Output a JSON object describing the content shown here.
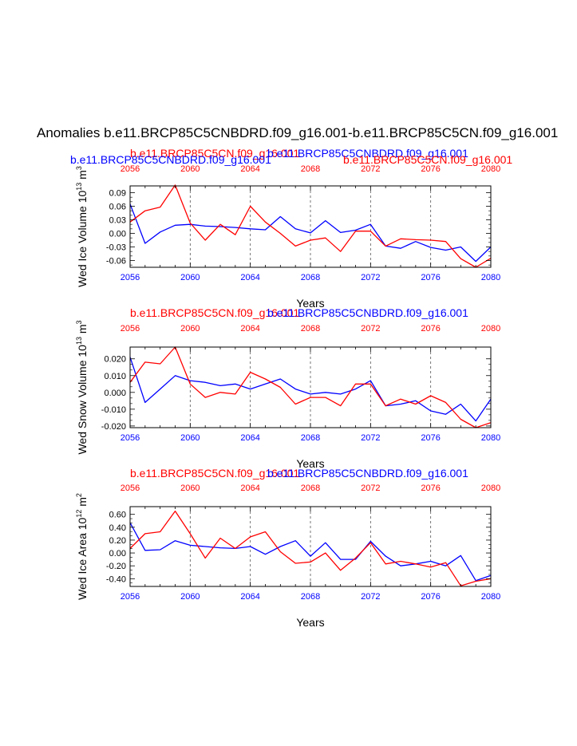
{
  "figure": {
    "title": "Anomalies b.e11.BRCP85C5CNBDRD.f09_g16.001-b.e11.BRCP85C5CN.f09_g16.001",
    "colors": {
      "blue": "#0000ff",
      "red": "#ff0000",
      "axis": "#000000",
      "grid": "#555555"
    }
  },
  "chart_data": [
    {
      "type": "line",
      "ylabel": "Wed Ice Volume 10",
      "ylabel_sup": "13",
      "ylabel_unit": " m",
      "ylabel_unit_sup": "3",
      "xlabel": "Years",
      "ylim": [
        -0.075,
        0.105
      ],
      "yticks": [
        0.09,
        0.06,
        0.03,
        0.0,
        -0.03,
        -0.06
      ],
      "ytick_labels": [
        "0.09",
        "0.06",
        "0.03",
        "0.00",
        "-0.03",
        "-0.06"
      ],
      "xlim": [
        2056,
        2080
      ],
      "xticks": [
        2056,
        2060,
        2064,
        2068,
        2072,
        2076,
        2080
      ],
      "xtick_labels": [
        "2056",
        "2060",
        "2064",
        "2068",
        "2072",
        "2076",
        "2080"
      ],
      "top_label_left": "b.e11.BRCP85C5CNBDRD.f09_g16.001",
      "top_label_left_color": "blue",
      "top_label_mid": "b.e11.BRCP85C5CN.f09_g16.001",
      "top_label_mid_color": "red",
      "top_label_right": "b.e11.BRCP85C5CNBDRD.f09_g16.001",
      "top_label_right_color": "blue",
      "top_label_far": "b.e11.BRCP85C5CN.f09_g16.001",
      "top_label_far_color": "red",
      "series": [
        {
          "name": "b.e11.BRCP85C5CNBDRD.f09_g16.001",
          "color": "blue",
          "x": [
            2056,
            2057,
            2058,
            2059,
            2060,
            2061,
            2062,
            2063,
            2064,
            2065,
            2066,
            2067,
            2068,
            2069,
            2070,
            2071,
            2072,
            2073,
            2074,
            2075,
            2076,
            2077,
            2078,
            2079,
            2080
          ],
          "values": [
            0.065,
            -0.022,
            0.003,
            0.018,
            0.02,
            0.016,
            0.015,
            0.013,
            0.01,
            0.008,
            0.037,
            0.01,
            0.001,
            0.028,
            0.002,
            0.007,
            0.02,
            -0.028,
            -0.033,
            -0.018,
            -0.031,
            -0.037,
            -0.03,
            -0.062,
            -0.03
          ]
        },
        {
          "name": "b.e11.BRCP85C5CN.f09_g16.001",
          "color": "red",
          "x": [
            2056,
            2057,
            2058,
            2059,
            2060,
            2061,
            2062,
            2063,
            2064,
            2065,
            2066,
            2067,
            2068,
            2069,
            2070,
            2071,
            2072,
            2073,
            2074,
            2075,
            2076,
            2077,
            2078,
            2079,
            2080
          ],
          "values": [
            0.025,
            0.05,
            0.058,
            0.107,
            0.023,
            -0.015,
            0.02,
            -0.003,
            0.06,
            0.025,
            0.0,
            -0.028,
            -0.015,
            -0.01,
            -0.04,
            0.005,
            0.005,
            -0.028,
            -0.012,
            -0.014,
            -0.015,
            -0.018,
            -0.056,
            -0.075,
            -0.055
          ]
        }
      ]
    },
    {
      "type": "line",
      "ylabel": "Wed Snow Volume 10",
      "ylabel_sup": "13",
      "ylabel_unit": " m",
      "ylabel_unit_sup": "3",
      "xlabel": "Years",
      "ylim": [
        -0.021,
        0.027
      ],
      "yticks": [
        0.02,
        0.01,
        0.0,
        -0.01,
        -0.02
      ],
      "ytick_labels": [
        "0.020",
        "0.010",
        "0.000",
        "-0.010",
        "-0.020"
      ],
      "xlim": [
        2056,
        2080
      ],
      "xticks": [
        2056,
        2060,
        2064,
        2068,
        2072,
        2076,
        2080
      ],
      "xtick_labels": [
        "2056",
        "2060",
        "2064",
        "2068",
        "2072",
        "2076",
        "2080"
      ],
      "top_label_left": "",
      "top_label_left_color": "blue",
      "top_label_mid": "b.e11.BRCP85C5CN.f09_g16.001",
      "top_label_mid_color": "red",
      "top_label_right": "b.e11.BRCP85C5CNBDRD.f09_g16.001",
      "top_label_right_color": "blue",
      "top_label_far": "",
      "top_label_far_color": "red",
      "series": [
        {
          "name": "b.e11.BRCP85C5CNBDRD.f09_g16.001",
          "color": "blue",
          "x": [
            2056,
            2057,
            2058,
            2059,
            2060,
            2061,
            2062,
            2063,
            2064,
            2065,
            2066,
            2067,
            2068,
            2069,
            2070,
            2071,
            2072,
            2073,
            2074,
            2075,
            2076,
            2077,
            2078,
            2079,
            2080
          ],
          "values": [
            0.021,
            -0.006,
            0.002,
            0.01,
            0.007,
            0.006,
            0.004,
            0.005,
            0.002,
            0.005,
            0.008,
            0.002,
            -0.001,
            0.0,
            -0.001,
            0.002,
            0.007,
            -0.008,
            -0.007,
            -0.005,
            -0.011,
            -0.013,
            -0.007,
            -0.017,
            -0.004
          ]
        },
        {
          "name": "b.e11.BRCP85C5CN.f09_g16.001",
          "color": "red",
          "x": [
            2056,
            2057,
            2058,
            2059,
            2060,
            2061,
            2062,
            2063,
            2064,
            2065,
            2066,
            2067,
            2068,
            2069,
            2070,
            2071,
            2072,
            2073,
            2074,
            2075,
            2076,
            2077,
            2078,
            2079,
            2080
          ],
          "values": [
            0.006,
            0.018,
            0.017,
            0.027,
            0.005,
            -0.003,
            0.0,
            -0.001,
            0.012,
            0.008,
            0.003,
            -0.007,
            -0.003,
            -0.003,
            -0.008,
            0.005,
            0.005,
            -0.008,
            -0.004,
            -0.007,
            -0.002,
            -0.006,
            -0.016,
            -0.021,
            -0.018
          ]
        }
      ]
    },
    {
      "type": "line",
      "ylabel": "Wed Ice Area 10",
      "ylabel_sup": "12",
      "ylabel_unit": " m",
      "ylabel_unit_sup": "2",
      "xlabel": "Years",
      "ylim": [
        -0.52,
        0.72
      ],
      "yticks": [
        0.6,
        0.4,
        0.2,
        0.0,
        -0.2,
        -0.4
      ],
      "ytick_labels": [
        "0.60",
        "0.40",
        "0.20",
        "0.00",
        "-0.20",
        "-0.40"
      ],
      "xlim": [
        2056,
        2080
      ],
      "xticks": [
        2056,
        2060,
        2064,
        2068,
        2072,
        2076,
        2080
      ],
      "xtick_labels": [
        "2056",
        "2060",
        "2064",
        "2068",
        "2072",
        "2076",
        "2080"
      ],
      "top_label_left": "",
      "top_label_left_color": "blue",
      "top_label_mid": "b.e11.BRCP85C5CN.f09_g16.001",
      "top_label_mid_color": "red",
      "top_label_right": "b.e11.BRCP85C5CNBDRD.f09_g16.001",
      "top_label_right_color": "blue",
      "top_label_far": "",
      "top_label_far_color": "red",
      "series": [
        {
          "name": "b.e11.BRCP85C5CNBDRD.f09_g16.001",
          "color": "blue",
          "x": [
            2056,
            2057,
            2058,
            2059,
            2060,
            2061,
            2062,
            2063,
            2064,
            2065,
            2066,
            2067,
            2068,
            2069,
            2070,
            2071,
            2072,
            2073,
            2074,
            2075,
            2076,
            2077,
            2078,
            2079,
            2080
          ],
          "values": [
            0.47,
            0.04,
            0.05,
            0.19,
            0.12,
            0.1,
            0.08,
            0.07,
            0.1,
            -0.02,
            0.1,
            0.19,
            -0.05,
            0.16,
            -0.1,
            -0.1,
            0.18,
            -0.05,
            -0.2,
            -0.17,
            -0.13,
            -0.2,
            -0.04,
            -0.43,
            -0.35
          ]
        },
        {
          "name": "b.e11.BRCP85C5CN.f09_g16.001",
          "color": "red",
          "x": [
            2056,
            2057,
            2058,
            2059,
            2060,
            2061,
            2062,
            2063,
            2064,
            2065,
            2066,
            2067,
            2068,
            2069,
            2070,
            2071,
            2072,
            2073,
            2074,
            2075,
            2076,
            2077,
            2078,
            2079,
            2080
          ],
          "values": [
            0.07,
            0.3,
            0.33,
            0.65,
            0.3,
            -0.08,
            0.23,
            0.07,
            0.25,
            0.33,
            0.02,
            -0.16,
            -0.14,
            0.0,
            -0.27,
            -0.08,
            0.16,
            -0.17,
            -0.13,
            -0.17,
            -0.22,
            -0.15,
            -0.51,
            -0.44,
            -0.4
          ]
        }
      ]
    }
  ]
}
